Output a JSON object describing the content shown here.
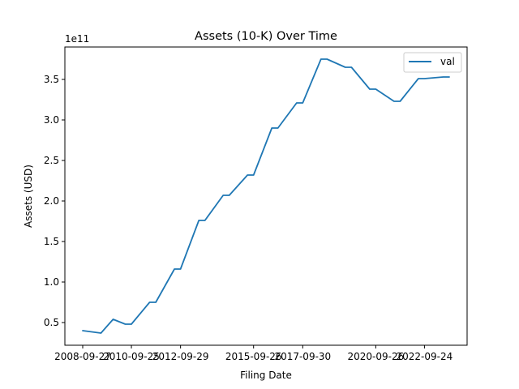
{
  "chart_data": {
    "type": "line",
    "title": "Assets (10-K) Over Time",
    "xlabel": "Filing Date",
    "ylabel": "Assets (USD)",
    "y_multiplier_label": "1e11",
    "x_tick_labels": [
      "2008-09-27",
      "2010-09-25",
      "2012-09-29",
      "2015-09-26",
      "2017-09-30",
      "2020-09-26",
      "2022-09-24"
    ],
    "y_tick_labels": [
      "0.5",
      "1.0",
      "1.5",
      "2.0",
      "2.5",
      "3.0",
      "3.5"
    ],
    "y_ticks": [
      0.5,
      1.0,
      1.5,
      2.0,
      2.5,
      3.0,
      3.5
    ],
    "ylim": [
      0.22,
      3.9
    ],
    "legend_placement": "top-right",
    "grid": false,
    "series": [
      {
        "name": "val",
        "color": "#1f77b4",
        "x": [
          "2008-09-27",
          "2009-06-27",
          "2009-12-26",
          "2010-06-26",
          "2010-09-25",
          "2011-06-25",
          "2011-09-24",
          "2012-06-30",
          "2012-09-29",
          "2013-06-29",
          "2013-09-28",
          "2014-06-28",
          "2014-09-27",
          "2015-06-27",
          "2015-09-26",
          "2016-06-25",
          "2016-09-24",
          "2017-07-01",
          "2017-09-30",
          "2018-06-30",
          "2018-09-29",
          "2019-06-29",
          "2019-09-28",
          "2020-06-27",
          "2020-09-26",
          "2021-06-26",
          "2021-09-25",
          "2022-06-25",
          "2022-09-24",
          "2023-07-01",
          "2023-09-30"
        ],
        "values": [
          0.4,
          0.37,
          0.54,
          0.48,
          0.48,
          0.75,
          0.75,
          1.16,
          1.16,
          1.76,
          1.76,
          2.07,
          2.07,
          2.32,
          2.32,
          2.9,
          2.9,
          3.21,
          3.21,
          3.75,
          3.75,
          3.65,
          3.65,
          3.38,
          3.38,
          3.23,
          3.23,
          3.51,
          3.51,
          3.53,
          3.53
        ]
      }
    ]
  }
}
